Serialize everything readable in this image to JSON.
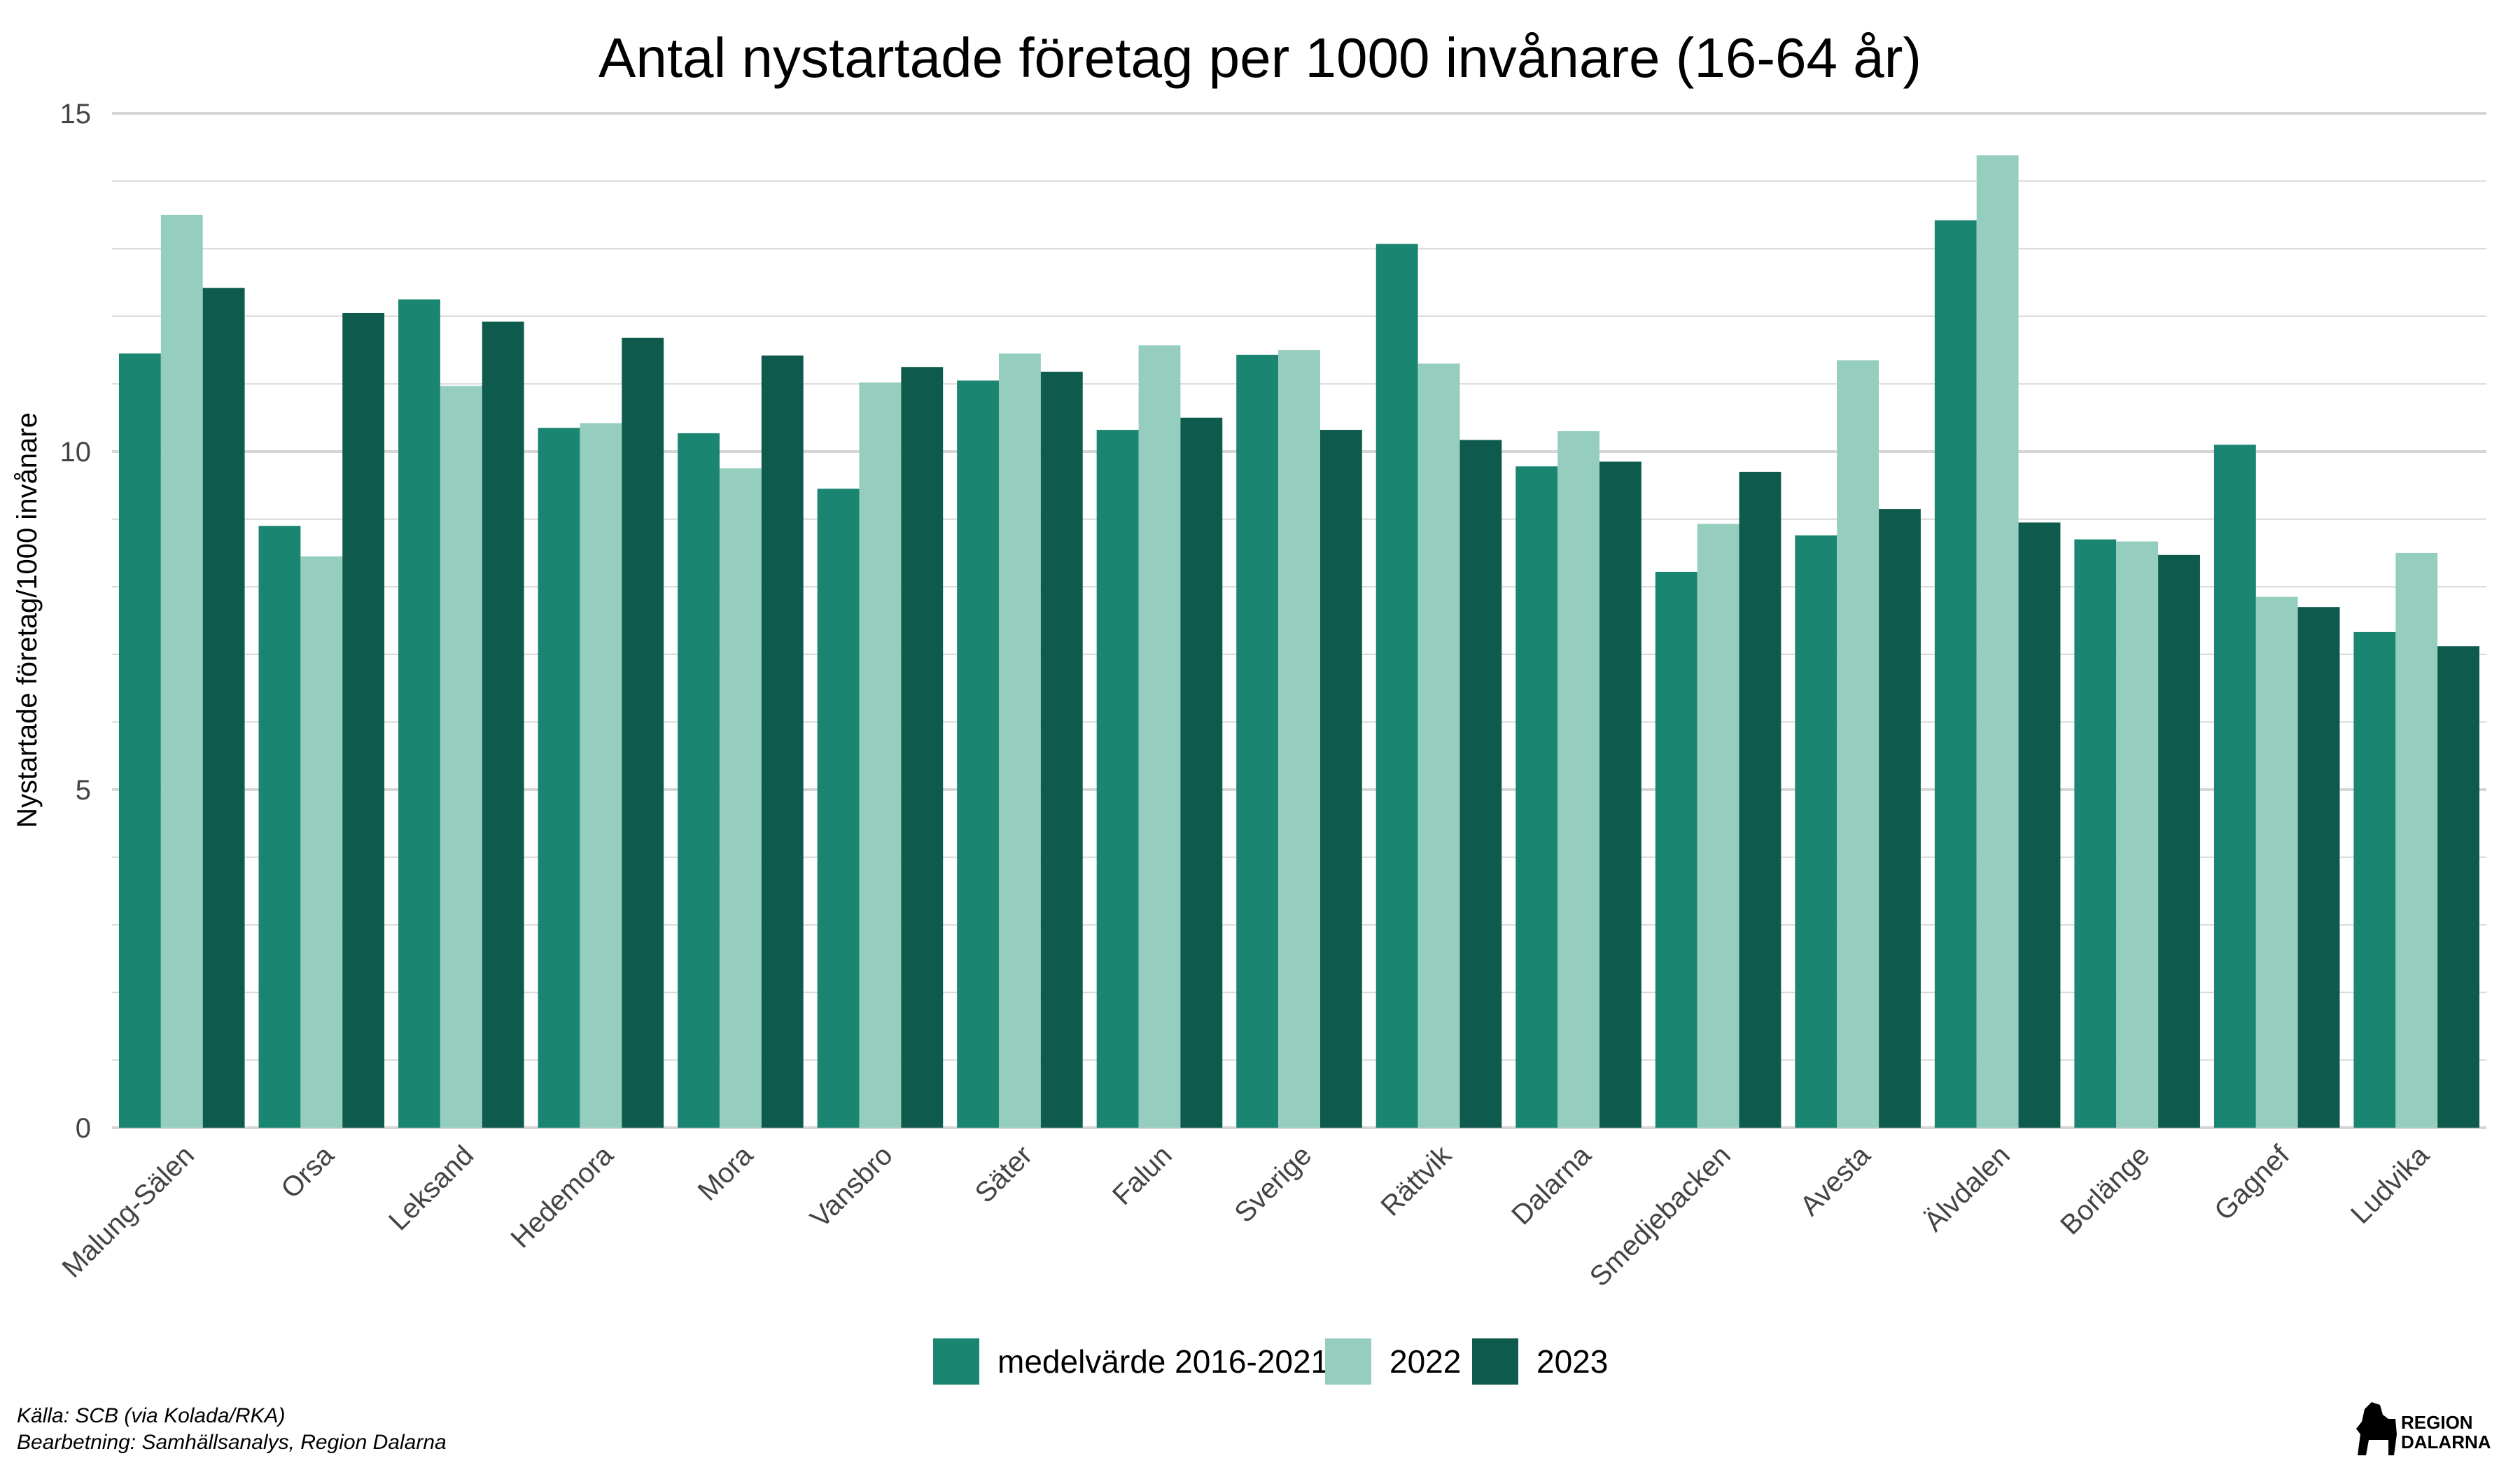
{
  "chart_data": {
    "type": "bar",
    "title": "Antal nystartade företag per 1000 invånare (16-64 år)",
    "xlabel": "",
    "ylabel": "Nystartade företag/1000 invånare",
    "ylim": [
      0,
      15
    ],
    "yticks": [
      0,
      5,
      10,
      15
    ],
    "grid": true,
    "legend_position": "bottom",
    "categories": [
      "Malung-Sälen",
      "Orsa",
      "Leksand",
      "Hedemora",
      "Mora",
      "Vansbro",
      "Säter",
      "Falun",
      "Sverige",
      "Rättvik",
      "Dalarna",
      "Smedjebacken",
      "Avesta",
      "Älvdalen",
      "Borlänge",
      "Gagnef",
      "Ludvika"
    ],
    "series": [
      {
        "name": "medelvärde 2016-2021",
        "color": "#1a8570",
        "values": [
          11.45,
          8.9,
          12.25,
          10.35,
          10.27,
          9.45,
          11.05,
          10.32,
          11.43,
          13.07,
          9.78,
          8.22,
          8.76,
          13.42,
          8.7,
          10.1,
          7.33
        ]
      },
      {
        "name": "2022",
        "color": "#95cebf",
        "values": [
          13.5,
          8.45,
          10.97,
          10.42,
          9.75,
          11.02,
          11.45,
          11.57,
          11.5,
          11.3,
          10.3,
          8.93,
          11.35,
          14.38,
          8.67,
          7.85,
          8.5
        ]
      },
      {
        "name": "2023",
        "color": "#0e5b4e",
        "values": [
          12.42,
          12.05,
          11.92,
          11.68,
          11.42,
          11.25,
          11.18,
          10.5,
          10.32,
          10.17,
          9.85,
          9.7,
          9.15,
          8.95,
          8.47,
          7.7,
          7.12
        ]
      }
    ]
  },
  "source": {
    "line1": "Källa: SCB (via Kolada/RKA)",
    "line2": "Bearbetning: Samhällsanalys, Region Dalarna"
  },
  "logo": {
    "line1": "REGION",
    "line2": "DALARNA",
    "icon": "dala-horse-icon"
  }
}
